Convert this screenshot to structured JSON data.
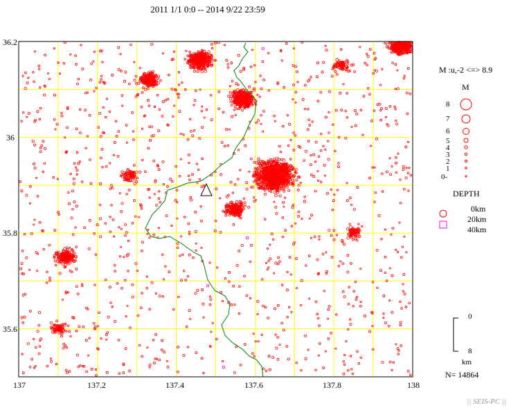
{
  "title": "2011 1/1 0:0 -- 2014 9/22 23:59",
  "axes": {
    "x_ticks": [
      "137",
      "137.2",
      "137.4",
      "137.6",
      "137.8",
      "138"
    ],
    "y_ticks": [
      "36.2",
      "36",
      "35.8",
      "35.6"
    ]
  },
  "legend": {
    "magnitude_range": "M :u,-2 <=> 8.9",
    "magnitude_header": "M",
    "magnitude_labels": [
      "8",
      "7",
      "6",
      "5",
      "4",
      "3",
      "2",
      "1",
      "0-"
    ],
    "depth_header": "DEPTH",
    "depth_labels": [
      "0km",
      "20km",
      "40km"
    ],
    "scale_top": "0",
    "scale_bottom": "8",
    "scale_unit": "km",
    "count": "N= 14864"
  },
  "footer": "|| SEIS-PC ||",
  "colors": {
    "grid": "#ffff00",
    "epicenter": "#ff0000",
    "deep_event": "#ff00ff",
    "boundary": "#008000",
    "frame": "#000000"
  },
  "chart_data": {
    "type": "scatter",
    "title": "2011 1/1 0:0 -- 2014 9/22 23:59",
    "xlim": [
      137.0,
      138.0
    ],
    "ylim": [
      35.5,
      36.2
    ],
    "grid": true,
    "total_events": 14864,
    "clusters": [
      {
        "lon": 137.65,
        "lat": 35.92,
        "density": "very high"
      },
      {
        "lon": 137.57,
        "lat": 36.08,
        "density": "high"
      },
      {
        "lon": 137.46,
        "lat": 36.16,
        "density": "high"
      },
      {
        "lon": 137.97,
        "lat": 36.19,
        "density": "high"
      },
      {
        "lon": 137.55,
        "lat": 35.85,
        "density": "medium"
      },
      {
        "lon": 137.33,
        "lat": 36.12,
        "density": "medium"
      },
      {
        "lon": 137.12,
        "lat": 35.75,
        "density": "medium"
      },
      {
        "lon": 137.28,
        "lat": 35.92,
        "density": "low"
      },
      {
        "lon": 137.1,
        "lat": 35.6,
        "density": "low"
      },
      {
        "lon": 137.82,
        "lat": 36.15,
        "density": "low"
      },
      {
        "lon": 137.85,
        "lat": 35.8,
        "density": "low"
      }
    ],
    "volcano_marker": {
      "lon": 137.48,
      "lat": 35.9
    },
    "magnitude_range": "M :u,-2 <=> 8.9",
    "depth_classes_km": [
      0,
      20,
      40
    ]
  }
}
